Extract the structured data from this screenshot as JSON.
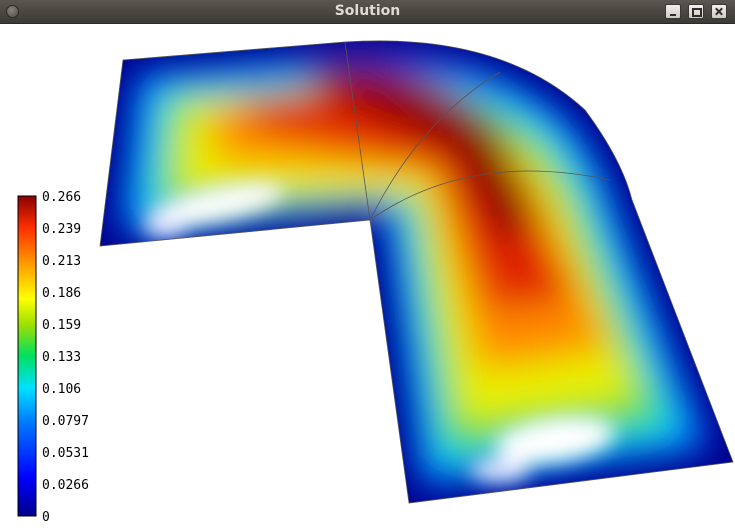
{
  "window": {
    "title": "Solution"
  },
  "colorbar": {
    "tick_labels": [
      "0.266",
      "0.239",
      "0.213",
      "0.186",
      "0.159",
      "0.133",
      "0.106",
      "0.0797",
      "0.0531",
      "0.0266",
      "0"
    ]
  }
}
